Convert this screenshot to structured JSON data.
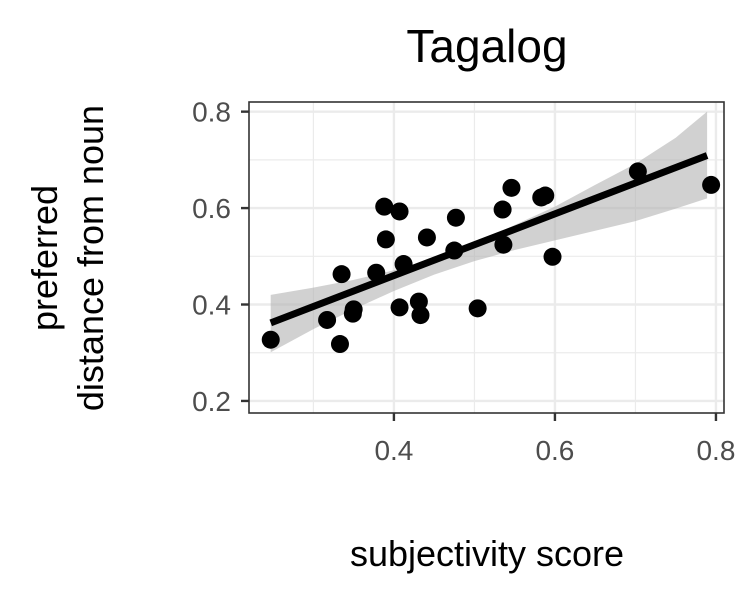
{
  "chart_data": {
    "type": "scatter",
    "title": "Tagalog",
    "xlabel": "subjectivity score",
    "ylabel_lines": [
      "preferred",
      "distance from noun"
    ],
    "xlim": [
      0.22,
      0.81
    ],
    "ylim": [
      0.175,
      0.82
    ],
    "x_ticks": [
      0.4,
      0.6,
      0.8
    ],
    "x_tick_labels": [
      "0.4",
      "0.6",
      "0.8"
    ],
    "x_minor_ticks": [
      0.3,
      0.5,
      0.7
    ],
    "y_ticks": [
      0.2,
      0.4,
      0.6,
      0.8
    ],
    "y_tick_labels": [
      "0.2",
      "0.4",
      "0.6",
      "0.8"
    ],
    "y_minor_ticks": [
      0.3,
      0.5,
      0.7
    ],
    "grid": true,
    "points": [
      {
        "x": 0.247,
        "y": 0.327
      },
      {
        "x": 0.317,
        "y": 0.368
      },
      {
        "x": 0.333,
        "y": 0.318
      },
      {
        "x": 0.335,
        "y": 0.463
      },
      {
        "x": 0.349,
        "y": 0.381
      },
      {
        "x": 0.35,
        "y": 0.39
      },
      {
        "x": 0.378,
        "y": 0.466
      },
      {
        "x": 0.388,
        "y": 0.603
      },
      {
        "x": 0.39,
        "y": 0.535
      },
      {
        "x": 0.407,
        "y": 0.593
      },
      {
        "x": 0.407,
        "y": 0.394
      },
      {
        "x": 0.412,
        "y": 0.484
      },
      {
        "x": 0.431,
        "y": 0.406
      },
      {
        "x": 0.433,
        "y": 0.378
      },
      {
        "x": 0.441,
        "y": 0.539
      },
      {
        "x": 0.475,
        "y": 0.512
      },
      {
        "x": 0.477,
        "y": 0.58
      },
      {
        "x": 0.504,
        "y": 0.392
      },
      {
        "x": 0.535,
        "y": 0.597
      },
      {
        "x": 0.536,
        "y": 0.524
      },
      {
        "x": 0.546,
        "y": 0.642
      },
      {
        "x": 0.583,
        "y": 0.622
      },
      {
        "x": 0.588,
        "y": 0.626
      },
      {
        "x": 0.597,
        "y": 0.499
      },
      {
        "x": 0.703,
        "y": 0.676
      },
      {
        "x": 0.794,
        "y": 0.648
      }
    ],
    "fit": {
      "x": [
        0.247,
        0.789
      ],
      "y": [
        0.362,
        0.709
      ]
    },
    "confidence_band": {
      "x": [
        0.247,
        0.3,
        0.35,
        0.4,
        0.45,
        0.5,
        0.55,
        0.6,
        0.65,
        0.7,
        0.75,
        0.789
      ],
      "lower": [
        0.301,
        0.349,
        0.39,
        0.428,
        0.462,
        0.49,
        0.513,
        0.533,
        0.553,
        0.573,
        0.599,
        0.62
      ],
      "upper": [
        0.42,
        0.435,
        0.451,
        0.471,
        0.496,
        0.527,
        0.565,
        0.603,
        0.648,
        0.692,
        0.746,
        0.8
      ]
    },
    "colors": {
      "points": "#000000",
      "fit_line": "#000000",
      "band": "#b3b3b3",
      "grid": "#ebebeb",
      "tick_label": "#4d4d4d",
      "border": "#333333"
    }
  }
}
